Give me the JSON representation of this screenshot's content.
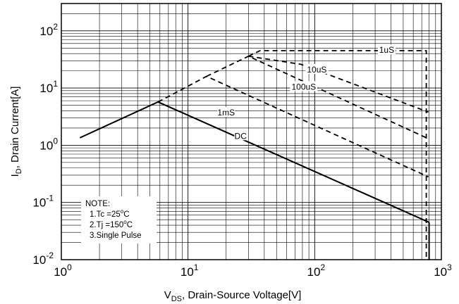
{
  "chart_data": {
    "type": "line",
    "scale": {
      "x": "log",
      "y": "log"
    },
    "xlim": [
      1,
      1000
    ],
    "ylim": [
      0.01,
      300
    ],
    "grid": true,
    "x_ticks": [
      {
        "base": "10",
        "exp": "0",
        "value": 1
      },
      {
        "base": "10",
        "exp": "1",
        "value": 10
      },
      {
        "base": "10",
        "exp": "2",
        "value": 100
      },
      {
        "base": "10",
        "exp": "3",
        "value": 1000
      }
    ],
    "y_ticks": [
      {
        "base": "10",
        "exp": "-2",
        "value": 0.01
      },
      {
        "base": "10",
        "exp": "-1",
        "value": 0.1
      },
      {
        "base": "10",
        "exp": "0",
        "value": 1
      },
      {
        "base": "10",
        "exp": "1",
        "value": 10
      },
      {
        "base": "10",
        "exp": "2",
        "value": 100
      }
    ],
    "xlabel": {
      "main": "V",
      "sub": "DS",
      "rest": ", Drain-Source Voltage[V]"
    },
    "ylabel": {
      "main": "I",
      "sub": "D",
      "rest": ", Drain Current[A]"
    },
    "series": [
      {
        "name": "DC",
        "style": "solid",
        "points": [
          [
            1.4,
            1.35
          ],
          [
            5.8,
            5.7
          ],
          [
            800,
            0.045
          ]
        ],
        "label_at": [
          26,
          1.45
        ]
      },
      {
        "name": "1mS",
        "style": "dashed",
        "points": [
          [
            5.8,
            5.7
          ],
          [
            14,
            16
          ],
          [
            790,
            0.28
          ]
        ],
        "label_at": [
          20,
          3.7
        ]
      },
      {
        "name": "100uS",
        "style": "dashed",
        "points": [
          [
            14,
            16
          ],
          [
            30,
            36
          ],
          [
            790,
            1.3
          ]
        ],
        "label_at": [
          82,
          10.5
        ]
      },
      {
        "name": "10uS",
        "style": "dashed",
        "points": [
          [
            30,
            36
          ],
          [
            78,
            26
          ],
          [
            790,
            3.8
          ]
        ],
        "label_at": [
          104,
          21
        ]
      },
      {
        "name": "1uS",
        "style": "dashed",
        "points": [
          [
            30,
            36
          ],
          [
            37,
            45
          ],
          [
            760,
            45
          ],
          [
            760,
            0.01
          ]
        ],
        "label_at": [
          370,
          46
        ]
      }
    ],
    "vertical_limit": {
      "x": 800,
      "y_from": 0.045,
      "y_to": 0.01
    },
    "annotation": {
      "title": "NOTE:",
      "lines": [
        {
          "pre": "1.Tc =25",
          "sup": "o",
          "post": "C"
        },
        {
          "pre": "2.Tj =150",
          "sup": "o",
          "post": "C"
        },
        {
          "pre": "3.Single Pulse",
          "sup": "",
          "post": ""
        }
      ]
    }
  }
}
